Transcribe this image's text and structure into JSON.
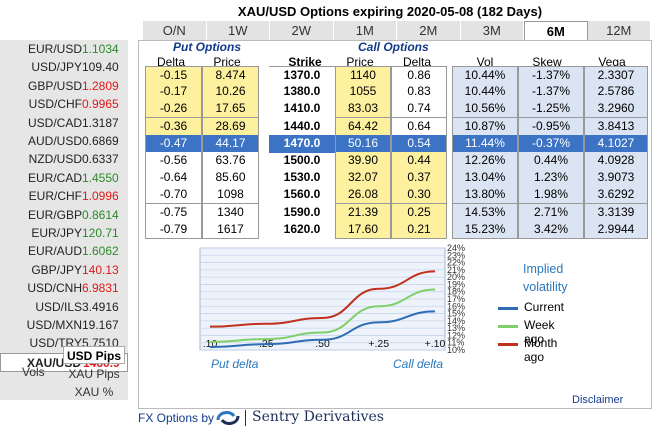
{
  "title": "XAU/USD Options expiring 2020-05-08 (182 Days)",
  "tabs": [
    "O/N",
    "1W",
    "2W",
    "1M",
    "2M",
    "3M",
    "6M",
    "12M"
  ],
  "active_tab": "6M",
  "tickers": [
    {
      "sym": "EUR/USD",
      "px": "1.1034",
      "color": "#2a8a2a"
    },
    {
      "sym": "USD/JPY",
      "px": "109.40",
      "color": "#222222"
    },
    {
      "sym": "GBP/USD",
      "px": "1.2809",
      "color": "#e01818"
    },
    {
      "sym": "USD/CHF",
      "px": "0.9965",
      "color": "#e01818"
    },
    {
      "sym": "USD/CAD",
      "px": "1.3187",
      "color": "#222222"
    },
    {
      "sym": "AUD/USD",
      "px": "0.6869",
      "color": "#222222"
    },
    {
      "sym": "NZD/USD",
      "px": "0.6337",
      "color": "#222222"
    },
    {
      "sym": "EUR/CAD",
      "px": "1.4550",
      "color": "#2a8a2a"
    },
    {
      "sym": "EUR/CHF",
      "px": "1.0996",
      "color": "#e01818"
    },
    {
      "sym": "EUR/GBP",
      "px": "0.8614",
      "color": "#2a8a2a"
    },
    {
      "sym": "EUR/JPY",
      "px": "120.71",
      "color": "#2a8a2a"
    },
    {
      "sym": "EUR/AUD",
      "px": "1.6062",
      "color": "#2a8a2a"
    },
    {
      "sym": "GBP/JPY",
      "px": "140.13",
      "color": "#e01818"
    },
    {
      "sym": "USD/CNH",
      "px": "6.9831",
      "color": "#e01818"
    },
    {
      "sym": "USD/ILS",
      "px": "3.4916",
      "color": "#222222"
    },
    {
      "sym": "USD/MXN",
      "px": "19.167",
      "color": "#222222"
    },
    {
      "sym": "USD/TRY",
      "px": "5.7510",
      "color": "#222222"
    },
    {
      "sym": "XAU/USD",
      "px": "1460.9",
      "color": "#e01818",
      "selected": true
    }
  ],
  "units": {
    "vols": "Vols",
    "usd_pips": "USD Pips",
    "xau_pips": "XAU Pips",
    "xau_pct": "XAU %"
  },
  "put_options": "Put Options",
  "call_options": "Call Options",
  "columns": {
    "put_delta": "Delta",
    "put_price": "Price",
    "strike": "Strike",
    "call_price": "Price",
    "call_delta": "Delta",
    "vol": "Vol",
    "skew": "Skew",
    "vega": "Vega"
  },
  "rows": [
    {
      "pd": "-0.15",
      "pp": "8.474",
      "k": "1370.0",
      "cp": "1140",
      "cd": "0.86",
      "vol": "10.44%",
      "skew": "-1.37%",
      "vega": "2.3307"
    },
    {
      "pd": "-0.17",
      "pp": "10.26",
      "k": "1380.0",
      "cp": "1055",
      "cd": "0.83",
      "vol": "10.44%",
      "skew": "-1.37%",
      "vega": "2.5786"
    },
    {
      "pd": "-0.26",
      "pp": "17.65",
      "k": "1410.0",
      "cp": "83.03",
      "cd": "0.74",
      "vol": "10.56%",
      "skew": "-1.25%",
      "vega": "3.2960"
    },
    {
      "pd": "-0.36",
      "pp": "28.69",
      "k": "1440.0",
      "cp": "64.42",
      "cd": "0.64",
      "vol": "10.87%",
      "skew": "-0.95%",
      "vega": "3.8413"
    },
    {
      "pd": "-0.47",
      "pp": "44.17",
      "k": "1470.0",
      "cp": "50.16",
      "cd": "0.54",
      "vol": "11.44%",
      "skew": "-0.37%",
      "vega": "4.1027",
      "highlight": true
    },
    {
      "pd": "-0.56",
      "pp": "63.76",
      "k": "1500.0",
      "cp": "39.90",
      "cd": "0.44",
      "vol": "12.26%",
      "skew": "0.44%",
      "vega": "4.0928"
    },
    {
      "pd": "-0.64",
      "pp": "85.60",
      "k": "1530.0",
      "cp": "32.07",
      "cd": "0.37",
      "vol": "13.04%",
      "skew": "1.23%",
      "vega": "3.9073"
    },
    {
      "pd": "-0.70",
      "pp": "1098",
      "k": "1560.0",
      "cp": "26.08",
      "cd": "0.30",
      "vol": "13.80%",
      "skew": "1.98%",
      "vega": "3.6292"
    },
    {
      "pd": "-0.75",
      "pp": "1340",
      "k": "1590.0",
      "cp": "21.39",
      "cd": "0.25",
      "vol": "14.53%",
      "skew": "2.71%",
      "vega": "3.3139"
    },
    {
      "pd": "-0.79",
      "pp": "1617",
      "k": "1620.0",
      "cp": "17.60",
      "cd": "0.21",
      "vol": "15.23%",
      "skew": "3.42%",
      "vega": "2.9944"
    }
  ],
  "chart_data": {
    "type": "line",
    "x_ticks": [
      ".10",
      ".25",
      ".50",
      "+.25",
      "+.10"
    ],
    "y_ticks": [
      "24%",
      "23%",
      "22%",
      "21%",
      "20%",
      "19%",
      "18%",
      "17%",
      "16%",
      "15%",
      "14%",
      "13%",
      "12%",
      "11%",
      "10%"
    ],
    "ylim": [
      10,
      24
    ],
    "series": [
      {
        "name": "Current",
        "color": "#2e6db4",
        "values": [
          10.4,
          10.8,
          11.4,
          13.8,
          15.3
        ]
      },
      {
        "name": "Week ago",
        "color": "#7fcf6a",
        "values": [
          11.1,
          11.5,
          12.4,
          16.0,
          18.3
        ]
      },
      {
        "name": "Month ago",
        "color": "#c0301c",
        "values": [
          13.2,
          13.6,
          14.4,
          18.4,
          20.8
        ]
      }
    ]
  },
  "legend_title_1": "Implied",
  "legend_title_2": "volatility",
  "put_delta_label": "Put delta",
  "call_delta_label": "Call delta",
  "disclaimer": "Disclaimer",
  "footer_prefix": "FX Options by",
  "brand": "Sentry Derivatives"
}
